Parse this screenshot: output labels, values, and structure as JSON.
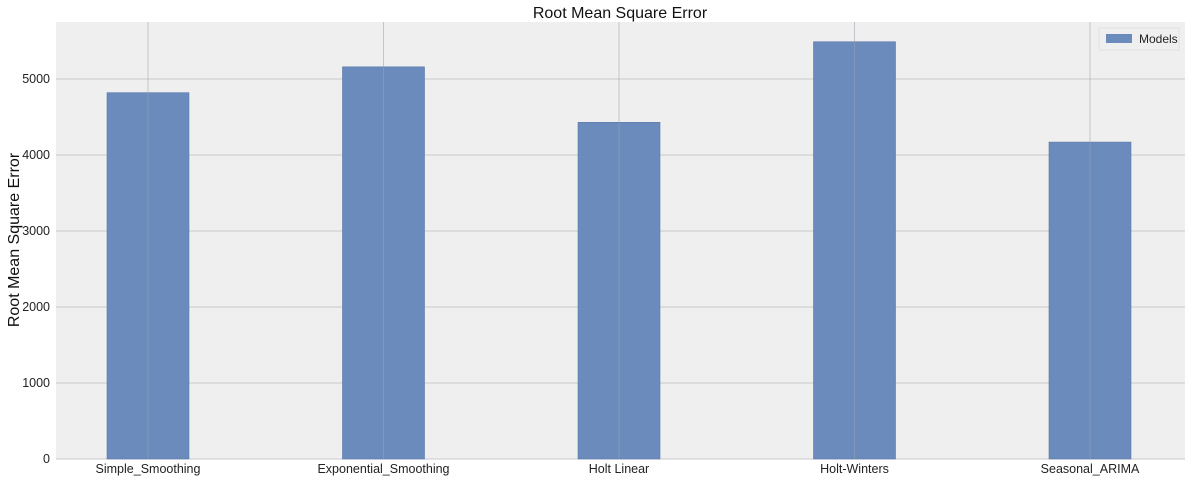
{
  "chart_data": {
    "type": "bar",
    "title": "Root Mean Square Error",
    "xlabel": "",
    "ylabel": "Root Mean Square Error",
    "categories": [
      "Simple_Smoothing",
      "Exponential_Smoothing",
      "Holt Linear",
      "Holt-Winters",
      "Seasonal_ARIMA"
    ],
    "series": [
      {
        "name": "Models",
        "values": [
          4820,
          5160,
          4430,
          5490,
          4170
        ]
      }
    ],
    "ylim": [
      0,
      5750
    ],
    "yticks": [
      0,
      1000,
      2000,
      3000,
      4000,
      5000
    ],
    "grid": true,
    "legend_position": "top-right",
    "colors": {
      "bar": "#6b8bbd",
      "bar_edge": "#5a78aa",
      "plot_bg": "#efefef",
      "grid": "#c8c8c8"
    }
  }
}
